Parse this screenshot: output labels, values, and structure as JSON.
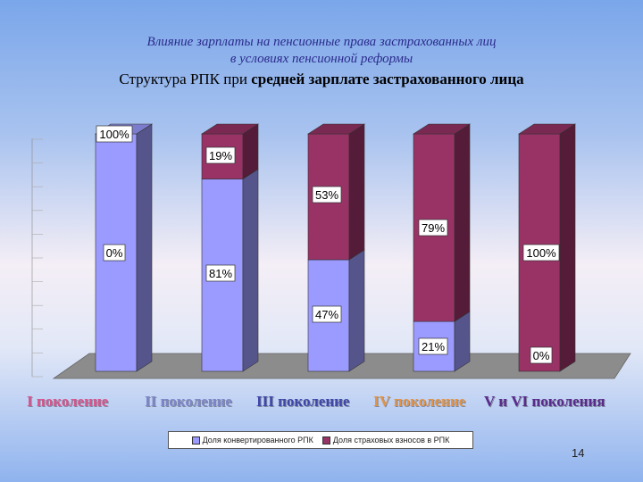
{
  "title": {
    "line1": "Влияние зарплаты на пенсионные права застрахованных лиц",
    "line2": "в условиях пенсионной реформы",
    "subtitle_plain": "Структура РПК при ",
    "subtitle_bold": "средней зарплате застрахованного лица"
  },
  "generation_labels": [
    {
      "text": "I поколение",
      "color": "#d8548c"
    },
    {
      "text": "II поколение",
      "color": "#7f86c8"
    },
    {
      "text": "III поколение",
      "color": "#3f46a8"
    },
    {
      "text": "IV поколение",
      "color": "#e1944a"
    },
    {
      "text": "V и VI поколения",
      "color": "#5a2a8a"
    }
  ],
  "page_number": "14",
  "colors": {
    "convertible": "#9b9bff",
    "insurance": "#993366",
    "floor": "#8c8c8c"
  },
  "chart_data": {
    "type": "bar",
    "stacked": true,
    "three_d": true,
    "categories": [
      "I поколение",
      "II поколение",
      "III поколение",
      "IV поколение",
      "V и VI поколения"
    ],
    "series": [
      {
        "name": "Доля конвертированного РПК",
        "values": [
          100,
          81,
          47,
          21,
          0
        ],
        "labels": [
          "100%",
          "81%",
          "47%",
          "21%",
          "0%"
        ]
      },
      {
        "name": "Доля страховых взносов в РПК",
        "values": [
          0,
          19,
          53,
          79,
          100
        ],
        "labels": [
          "0%",
          "19%",
          "53%",
          "79%",
          "100%"
        ]
      }
    ],
    "ylim": [
      0,
      100
    ],
    "legend_position": "bottom"
  }
}
